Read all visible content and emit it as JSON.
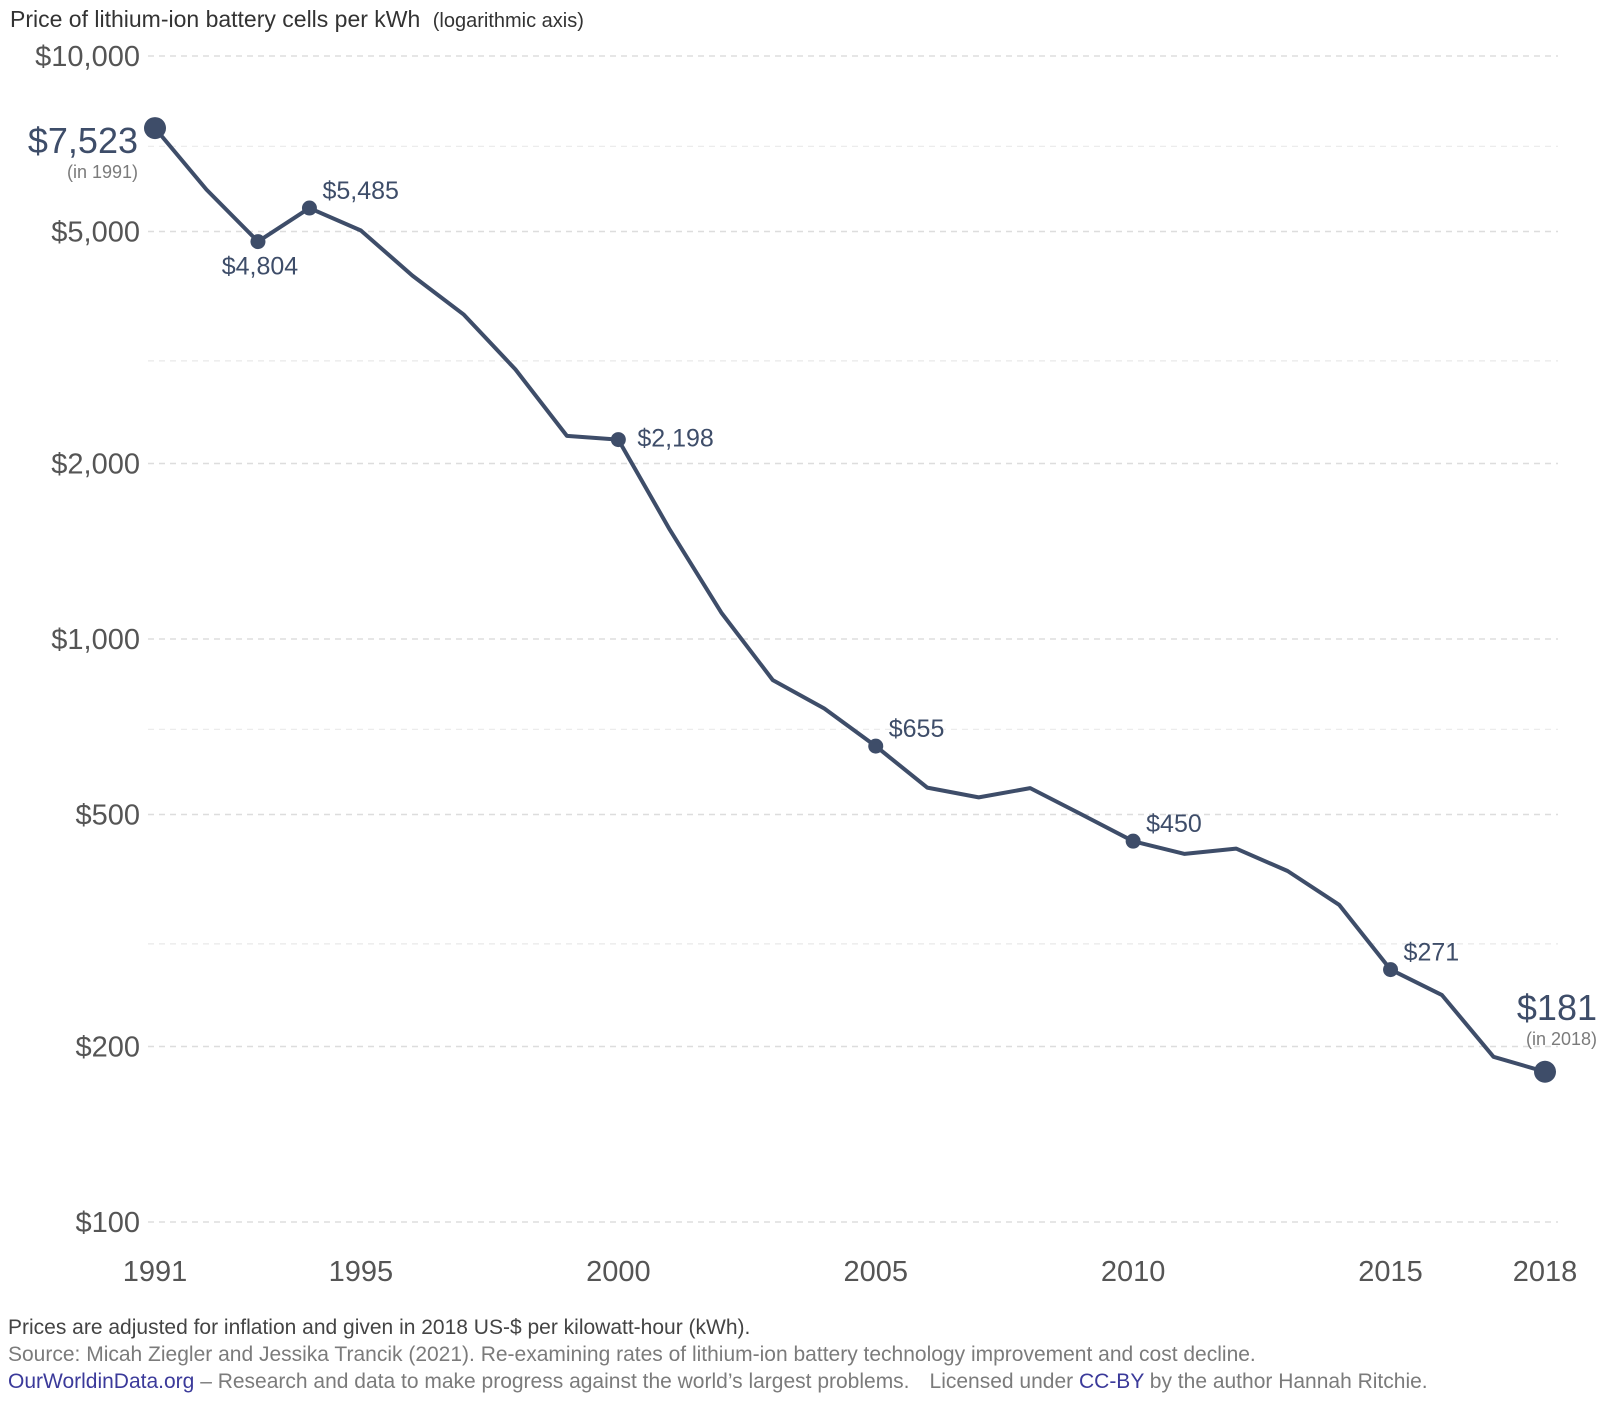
{
  "chart_data": {
    "type": "line",
    "title": "Price of lithium-ion battery cells per kWh",
    "title_suffix": "(logarithmic axis)",
    "scale": "log",
    "ylim": [
      100,
      10000
    ],
    "xlim": [
      1991,
      2018
    ],
    "grid": true,
    "yticks": [
      {
        "value": 10000,
        "label": "$10,000"
      },
      {
        "value": 5000,
        "label": "$5,000"
      },
      {
        "value": 2000,
        "label": "$2,000"
      },
      {
        "value": 1000,
        "label": "$1,000"
      },
      {
        "value": 500,
        "label": "$500"
      },
      {
        "value": 200,
        "label": "$200"
      },
      {
        "value": 100,
        "label": "$100"
      }
    ],
    "minor_gridlines": [
      7000,
      3000,
      700,
      300
    ],
    "xticks": [
      {
        "value": 1991,
        "label": "1991"
      },
      {
        "value": 1995,
        "label": "1995"
      },
      {
        "value": 2000,
        "label": "2000"
      },
      {
        "value": 2005,
        "label": "2005"
      },
      {
        "value": 2010,
        "label": "2010"
      },
      {
        "value": 2015,
        "label": "2015"
      },
      {
        "value": 2018,
        "label": "2018"
      }
    ],
    "series": [
      {
        "color": "#3e4d69",
        "points": [
          {
            "x": 1991,
            "y": 7523
          },
          {
            "x": 1992,
            "y": 5900
          },
          {
            "x": 1993,
            "y": 4804
          },
          {
            "x": 1994,
            "y": 5485
          },
          {
            "x": 1995,
            "y": 5020
          },
          {
            "x": 1996,
            "y": 4200
          },
          {
            "x": 1997,
            "y": 3600
          },
          {
            "x": 1998,
            "y": 2900
          },
          {
            "x": 1999,
            "y": 2230
          },
          {
            "x": 2000,
            "y": 2198
          },
          {
            "x": 2001,
            "y": 1540
          },
          {
            "x": 2002,
            "y": 1110
          },
          {
            "x": 2003,
            "y": 850
          },
          {
            "x": 2004,
            "y": 760
          },
          {
            "x": 2005,
            "y": 655
          },
          {
            "x": 2006,
            "y": 556
          },
          {
            "x": 2007,
            "y": 535
          },
          {
            "x": 2008,
            "y": 555
          },
          {
            "x": 2009,
            "y": 500
          },
          {
            "x": 2010,
            "y": 450
          },
          {
            "x": 2011,
            "y": 428
          },
          {
            "x": 2012,
            "y": 437
          },
          {
            "x": 2013,
            "y": 400
          },
          {
            "x": 2014,
            "y": 350
          },
          {
            "x": 2015,
            "y": 271
          },
          {
            "x": 2016,
            "y": 245
          },
          {
            "x": 2017,
            "y": 192
          },
          {
            "x": 2018,
            "y": 181
          }
        ]
      }
    ],
    "annotations": [
      {
        "x": 1991,
        "y": 7523,
        "label": "$7,523",
        "sub": "(in 1991)",
        "style": "big-left"
      },
      {
        "x": 1993,
        "y": 4804,
        "label": "$4,804",
        "style": "below"
      },
      {
        "x": 1994,
        "y": 5485,
        "label": "$5,485",
        "style": "right-above"
      },
      {
        "x": 2000,
        "y": 2198,
        "label": "$2,198",
        "style": "right"
      },
      {
        "x": 2005,
        "y": 655,
        "label": "$655",
        "style": "right-above"
      },
      {
        "x": 2010,
        "y": 450,
        "label": "$450",
        "style": "right-above"
      },
      {
        "x": 2015,
        "y": 271,
        "label": "$271",
        "style": "right-above"
      },
      {
        "x": 2018,
        "y": 181,
        "label": "$181",
        "sub": "(in 2018)",
        "style": "big-above"
      }
    ]
  },
  "footer": {
    "note": "Prices are adjusted for inflation and given in 2018 US-$ per kilowatt-hour (kWh).",
    "source": "Source: Micah Ziegler and Jessika Trancik (2021). Re-examining rates of lithium-ion battery technology improvement and cost decline.",
    "owid_link": "OurWorldinData.org",
    "tagline": " – Research and data to make progress against the world’s largest problems.",
    "license_prefix": "Licensed under ",
    "license_link": "CC-BY",
    "license_suffix": " by the author Hannah Ritchie."
  }
}
